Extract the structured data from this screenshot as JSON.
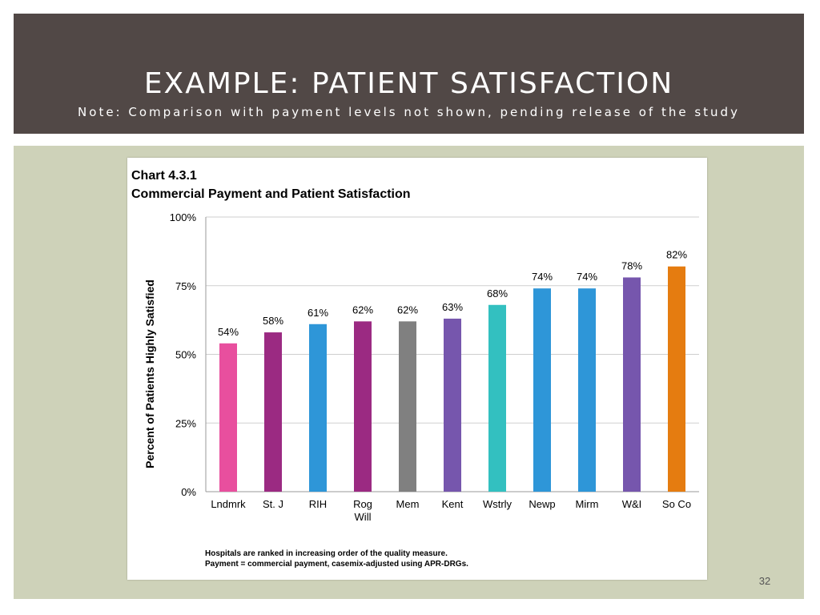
{
  "slide": {
    "title": "EXAMPLE: PATIENT SATISFACTION",
    "subtitle": "Note: Comparison with payment levels not shown, pending release of the study",
    "page_number": "32"
  },
  "colors": {
    "header_bg": "#514846",
    "stage_bg": "#ced2b9"
  },
  "chart_data": {
    "type": "bar",
    "title": "Chart 4.3.1",
    "subtitle": "Commercial Payment and Patient Satisfaction",
    "xlabel": "",
    "ylabel": "Percent of Patients Highly Satisfied",
    "ylim": [
      0,
      100
    ],
    "yticks": [
      0,
      25,
      50,
      75,
      100
    ],
    "ytick_labels": [
      "0%",
      "25%",
      "50%",
      "75%",
      "100%"
    ],
    "grid": true,
    "categories": [
      "Lndmrk",
      "St. J",
      "RIH",
      "Rog Will",
      "Mem",
      "Kent",
      "Wstrly",
      "Newp",
      "Mirm",
      "W&I",
      "So Co"
    ],
    "category_lines": [
      [
        "Lndmrk"
      ],
      [
        "St. J"
      ],
      [
        "RIH"
      ],
      [
        "Rog",
        "Will"
      ],
      [
        "Mem"
      ],
      [
        "Kent"
      ],
      [
        "Wstrly"
      ],
      [
        "Newp"
      ],
      [
        "Mirm"
      ],
      [
        "W&I"
      ],
      [
        "So Co"
      ]
    ],
    "values": [
      54,
      58,
      61,
      62,
      62,
      63,
      68,
      74,
      74,
      78,
      82
    ],
    "value_labels": [
      "54%",
      "58%",
      "61%",
      "62%",
      "62%",
      "63%",
      "68%",
      "74%",
      "74%",
      "78%",
      "82%"
    ],
    "bar_colors": [
      "#e84f9e",
      "#9b2a82",
      "#2e96d8",
      "#9b2a82",
      "#808080",
      "#7656ad",
      "#33c0c0",
      "#2e96d8",
      "#2e96d8",
      "#7656ad",
      "#e57c10"
    ],
    "footnotes": [
      "Hospitals are ranked in increasing order of the quality measure.",
      "Payment = commercial payment, casemix-adjusted using APR-DRGs."
    ]
  }
}
